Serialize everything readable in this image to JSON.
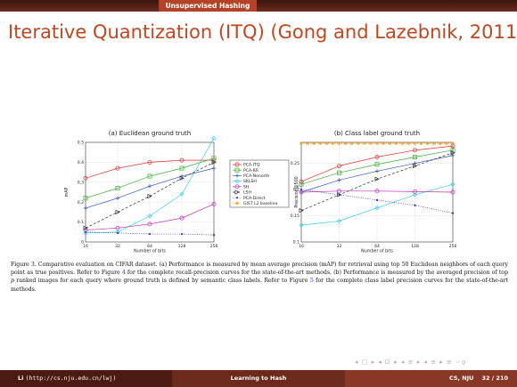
{
  "header": {
    "section_tab": "Unsupervised Hashing"
  },
  "slide": {
    "title": "Iterative Quantization (ITQ) (Gong and Lazebnik, 2011)"
  },
  "chart_data": [
    {
      "type": "line",
      "title": "(a) Euclidean ground truth",
      "xlabel": "Number of bits",
      "ylabel": "mAP",
      "x": [
        16,
        32,
        64,
        128,
        256
      ],
      "xticks": [
        "16",
        "32",
        "64",
        "128",
        "256"
      ],
      "yticks": [
        "0",
        "0.1",
        "0.2",
        "0.3",
        "0.4",
        "0.5"
      ],
      "ylim": [
        0,
        0.5
      ],
      "x_scale": "log2",
      "grid": true,
      "series": [
        {
          "name": "PCA-ITQ",
          "color": "#e03030",
          "marker": "circle",
          "dash": "solid",
          "values": [
            0.32,
            0.37,
            0.4,
            0.41,
            0.41
          ]
        },
        {
          "name": "PCA-RR",
          "color": "#35b030",
          "marker": "square",
          "dash": "solid",
          "values": [
            0.22,
            0.27,
            0.33,
            0.37,
            0.42
          ]
        },
        {
          "name": "PCA-Nonorth",
          "color": "#3050c8",
          "marker": "plus",
          "dash": "solid",
          "values": [
            0.17,
            0.22,
            0.28,
            0.33,
            0.37
          ]
        },
        {
          "name": "SKLSH",
          "color": "#30d0e8",
          "marker": "diamond",
          "dash": "solid",
          "values": [
            0.045,
            0.05,
            0.13,
            0.24,
            0.52
          ]
        },
        {
          "name": "SH",
          "color": "#c030c0",
          "marker": "circle",
          "dash": "solid",
          "values": [
            0.06,
            0.07,
            0.09,
            0.12,
            0.19
          ]
        },
        {
          "name": "LSH",
          "color": "#303030",
          "marker": "triangle",
          "dash": "dashed",
          "values": [
            0.07,
            0.15,
            0.23,
            0.32,
            0.4
          ]
        },
        {
          "name": "PCA-Direct",
          "color": "#3030a0",
          "marker": "dot",
          "dash": "dotted",
          "values": [
            0.05,
            0.045,
            0.04,
            0.04,
            0.035
          ]
        }
      ]
    },
    {
      "type": "line",
      "title": "(b) Class label ground truth",
      "xlabel": "Number of bits",
      "ylabel": "Precision@500",
      "x": [
        16,
        32,
        64,
        128,
        256
      ],
      "xticks": [
        "16",
        "32",
        "64",
        "128",
        "256"
      ],
      "yticks": [
        "0.1",
        "0.15",
        "0.2",
        "0.25"
      ],
      "ylim": [
        0.1,
        0.29
      ],
      "x_scale": "log2",
      "grid": true,
      "series": [
        {
          "name": "PCA-ITQ",
          "color": "#e03030",
          "marker": "circle",
          "dash": "solid",
          "values": [
            0.215,
            0.245,
            0.262,
            0.275,
            0.283
          ]
        },
        {
          "name": "PCA-RR",
          "color": "#35b030",
          "marker": "square",
          "dash": "solid",
          "values": [
            0.21,
            0.232,
            0.248,
            0.262,
            0.275
          ]
        },
        {
          "name": "PCA-Nonorth",
          "color": "#3050c8",
          "marker": "plus",
          "dash": "solid",
          "values": [
            0.195,
            0.218,
            0.235,
            0.25,
            0.265
          ]
        },
        {
          "name": "SKLSH",
          "color": "#30d0e8",
          "marker": "diamond",
          "dash": "solid",
          "values": [
            0.132,
            0.14,
            0.165,
            0.19,
            0.21
          ]
        },
        {
          "name": "SH",
          "color": "#c030c0",
          "marker": "circle",
          "dash": "solid",
          "values": [
            0.195,
            0.197,
            0.197,
            0.196,
            0.195
          ]
        },
        {
          "name": "LSH",
          "color": "#303030",
          "marker": "triangle",
          "dash": "dashed",
          "values": [
            0.16,
            0.19,
            0.22,
            0.245,
            0.27
          ]
        },
        {
          "name": "PCA-Direct",
          "color": "#3030a0",
          "marker": "dot",
          "dash": "dotted",
          "values": [
            0.2,
            0.19,
            0.18,
            0.17,
            0.155
          ]
        },
        {
          "name": "GIST L2 baseline",
          "color": "#f0a020",
          "marker": "asterisk",
          "dash": "dotted",
          "values": [
            0.288,
            0.288,
            0.288,
            0.288,
            0.288
          ]
        }
      ]
    }
  ],
  "legend": {
    "entries": [
      {
        "name": "PCA-ITQ",
        "color": "#e03030",
        "marker": "circle"
      },
      {
        "name": "PCA-RR",
        "color": "#35b030",
        "marker": "square"
      },
      {
        "name": "PCA-Nonorth",
        "color": "#3050c8",
        "marker": "plus"
      },
      {
        "name": "SKLSH",
        "color": "#30d0e8",
        "marker": "diamond"
      },
      {
        "name": "SH",
        "color": "#c030c0",
        "marker": "circle"
      },
      {
        "name": "LSH",
        "color": "#303030",
        "marker": "triangle"
      },
      {
        "name": "PCA-Direct",
        "color": "#3030a0",
        "marker": "dot"
      },
      {
        "name": "GIST L2 baseline",
        "color": "#f0a020",
        "marker": "asterisk"
      }
    ]
  },
  "caption": {
    "p1": "Figure 3. Comparative evaluation on CIFAR dataset. (a) Performance is measured by mean average precision (mAP) for retrieval using top 50 Euclidean neighbors of each query point as true positives. Refer to Figure ",
    "ref1": "4",
    "p2": " for the complete recall-precision curves for the state-of-the-art methods. (b) Performance is measured by the averaged precision of top ",
    "var": "p",
    "p3": " ranked images for each query where ground truth is defined by semantic class labels. Refer to Figure ",
    "ref2": "5",
    "p4": " for the complete class label precision curves for the state-of-the-art methods."
  },
  "nav": {
    "symbols": "◂ ▢ ▸ ◂ ⊡ ▸ ◂ ≡ ▸ ◂ ≡ ▸ ≡ ∽ǫ"
  },
  "footer": {
    "author": "Li",
    "url": "(http://cs.nju.edu.cn/lwj)",
    "title": "Learning to Hash",
    "org": "CS, NJU",
    "page": "32 / 210"
  }
}
